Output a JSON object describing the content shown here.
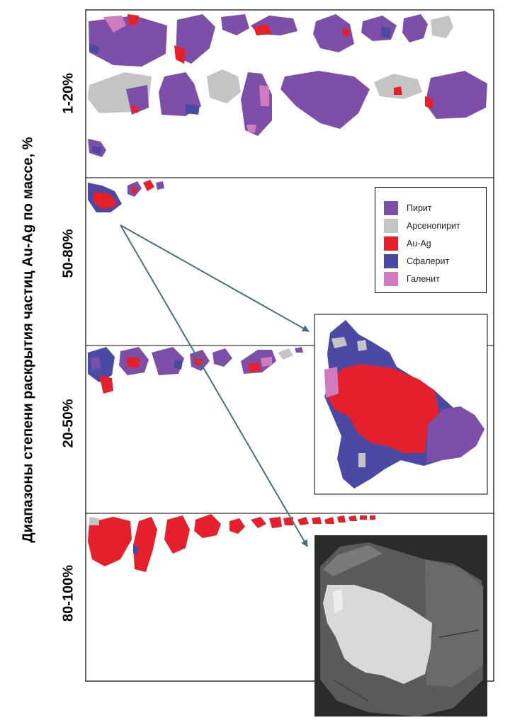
{
  "y_axis_label": "Диапазоны степени раскрытия частиц Au-Ag по массе, %",
  "rows": [
    {
      "label": "1-20%"
    },
    {
      "label": "50-80%"
    },
    {
      "label": "20-50%"
    },
    {
      "label": "80-100%"
    }
  ],
  "legend": [
    {
      "label": "Пирит",
      "color": "#7e4fa8"
    },
    {
      "label": "Арсенопирит",
      "color": "#c4c4c4"
    },
    {
      "label": "Au-Ag",
      "color": "#e5202a"
    },
    {
      "label": "Сфалерит",
      "color": "#4a4aa5"
    },
    {
      "label": "Галенит",
      "color": "#d07ac0"
    }
  ],
  "colors": {
    "pyrite": "#7e4fa8",
    "arsenopyrite": "#c4c4c4",
    "au_ag": "#e5202a",
    "sphalerite": "#4a4aa5",
    "galena": "#d07ac0",
    "arrow": "#4d6f7e",
    "sem_background": "#2a2a2a"
  }
}
